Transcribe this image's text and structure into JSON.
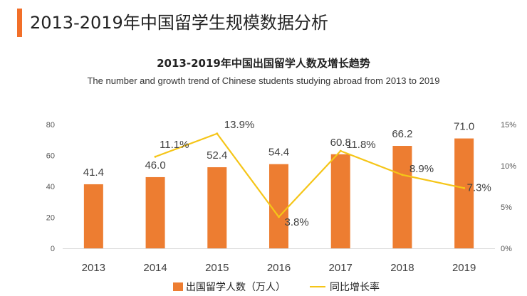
{
  "page": {
    "title": "2013-2019年中国留学生规模数据分析",
    "accent_color": "#F26F29"
  },
  "chart_data": {
    "type": "bar",
    "title": "2013-2019年中国出国留学人数及增长趋势",
    "subtitle": "The number and growth trend of Chinese students studying abroad from 2013 to 2019",
    "categories": [
      "2013",
      "2014",
      "2015",
      "2016",
      "2017",
      "2018",
      "2019"
    ],
    "series": [
      {
        "name": "出国留学人数（万人）",
        "type": "bar",
        "axis": "left",
        "values": [
          41.4,
          46.0,
          52.4,
          54.4,
          60.8,
          66.2,
          71.0
        ],
        "labels": [
          "41.4",
          "46.0",
          "52.4",
          "54.4",
          "60.8",
          "66.2",
          "71.0"
        ],
        "color": "#ED7D31"
      },
      {
        "name": "同比增长率",
        "type": "line",
        "axis": "right",
        "x": [
          "2014",
          "2015",
          "2016",
          "2017",
          "2018",
          "2019"
        ],
        "values": [
          11.1,
          13.9,
          3.8,
          11.8,
          8.9,
          7.3
        ],
        "labels": [
          "11.1%",
          "13.9%",
          "3.8%",
          "11.8%",
          "8.9%",
          "7.3%"
        ],
        "color": "#F5C518"
      }
    ],
    "y_left": {
      "range": [
        0,
        80
      ],
      "ticks": [
        "0",
        "20",
        "40",
        "60",
        "80"
      ]
    },
    "y_right": {
      "range": [
        0,
        15
      ],
      "ticks": [
        "0%",
        "5%",
        "10%",
        "15%"
      ]
    },
    "grid": false,
    "legend_position": "bottom"
  }
}
